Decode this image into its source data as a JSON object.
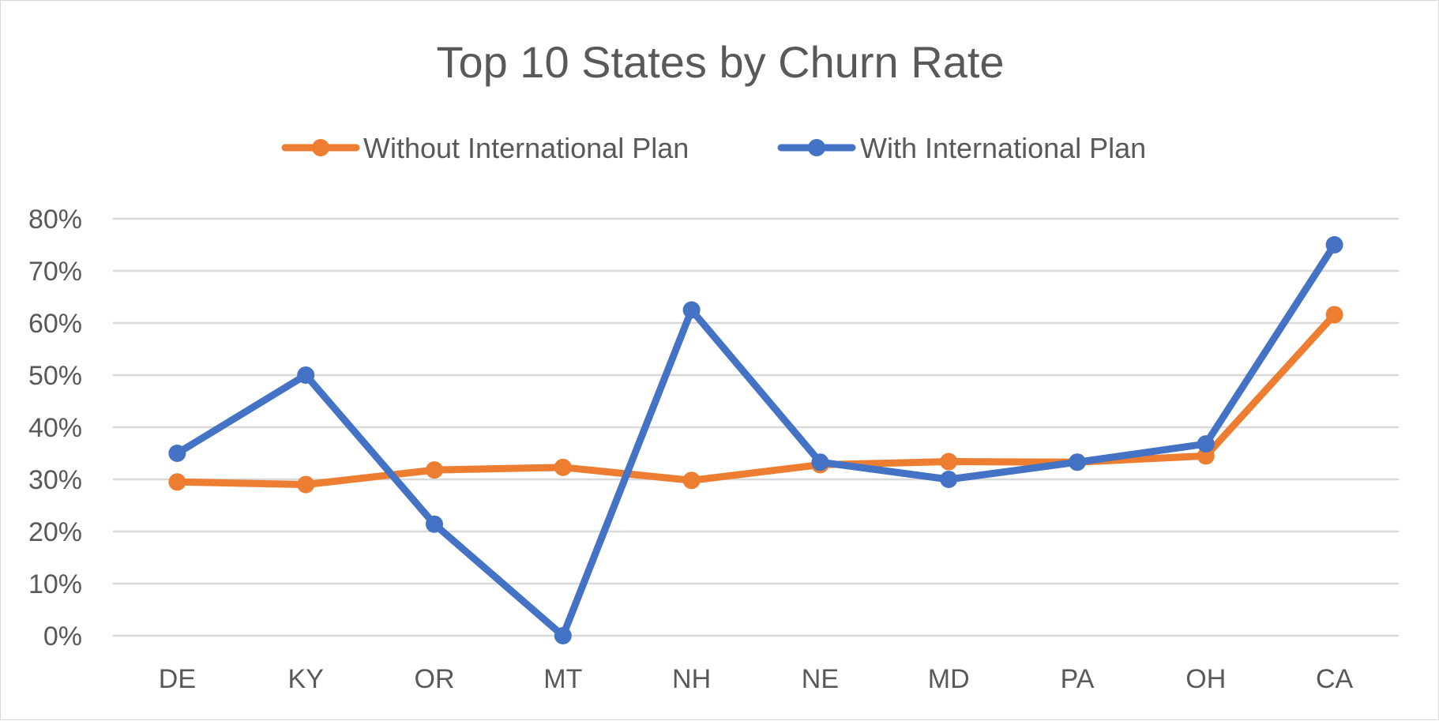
{
  "chart_data": {
    "type": "line",
    "title": "Top 10 States by Churn Rate",
    "xlabel": "",
    "ylabel": "",
    "categories": [
      "DE",
      "KY",
      "OR",
      "MT",
      "NH",
      "NE",
      "MD",
      "PA",
      "OH",
      "CA"
    ],
    "y_ticks": [
      "0%",
      "10%",
      "20%",
      "30%",
      "40%",
      "50%",
      "60%",
      "70%",
      "80%"
    ],
    "ylim": [
      0,
      80
    ],
    "grid": true,
    "legend_position": "top",
    "series": [
      {
        "name": "Without International Plan",
        "color": "#ED7D31",
        "values": [
          29.5,
          29.0,
          31.8,
          32.3,
          29.8,
          32.8,
          33.4,
          33.3,
          34.5,
          61.6
        ]
      },
      {
        "name": "With International Plan",
        "color": "#4472C4",
        "values": [
          35.0,
          50.0,
          21.4,
          0.0,
          62.5,
          33.3,
          30.0,
          33.3,
          36.8,
          75.0
        ]
      }
    ]
  }
}
